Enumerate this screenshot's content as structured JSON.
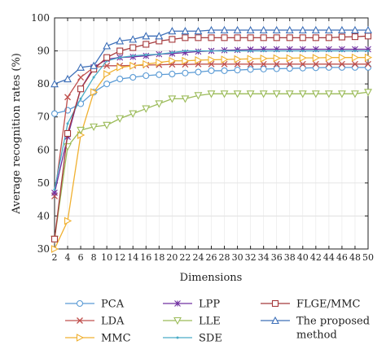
{
  "chart_data": {
    "type": "line",
    "title": "",
    "xlabel": "Dimensions",
    "ylabel": "Average recognition rates (%)",
    "xlim": [
      2,
      50
    ],
    "ylim": [
      30,
      100
    ],
    "xticks": [
      2,
      4,
      6,
      8,
      10,
      12,
      14,
      16,
      18,
      20,
      22,
      24,
      26,
      28,
      30,
      32,
      34,
      36,
      38,
      40,
      42,
      44,
      46,
      48,
      50
    ],
    "yticks": [
      30,
      40,
      50,
      60,
      70,
      80,
      90,
      100
    ],
    "x": [
      2,
      4,
      6,
      8,
      10,
      12,
      14,
      16,
      18,
      20,
      22,
      24,
      26,
      28,
      30,
      32,
      34,
      36,
      38,
      40,
      42,
      44,
      46,
      48,
      50
    ],
    "legend_position": "bottom",
    "series": [
      {
        "name": "PCA",
        "color": "#5b9bd5",
        "marker": "circle",
        "values": [
          71,
          72,
          74,
          77.5,
          80,
          81.5,
          82,
          82.5,
          82.8,
          83,
          83.3,
          83.6,
          84,
          84,
          84.2,
          84.4,
          84.5,
          84.6,
          84.7,
          84.8,
          84.9,
          85,
          85,
          85,
          85
        ]
      },
      {
        "name": "LDA",
        "color": "#c0504d",
        "marker": "x",
        "values": [
          46,
          76,
          82,
          85,
          85.5,
          85.5,
          85.6,
          85.7,
          85.8,
          85.9,
          85.9,
          86,
          86,
          86,
          86,
          86,
          86,
          86,
          86,
          86,
          86,
          86,
          86,
          86,
          86
        ]
      },
      {
        "name": "MMC",
        "color": "#f0b030",
        "marker": "triangle-right",
        "values": [
          29,
          38.5,
          64.5,
          77.5,
          83,
          85,
          85.5,
          86,
          86.5,
          87,
          87,
          87.2,
          87.3,
          87.4,
          87.5,
          87.6,
          87.7,
          87.8,
          87.8,
          87.9,
          87.9,
          88,
          88,
          88,
          88
        ]
      },
      {
        "name": "LPP",
        "color": "#7030a0",
        "marker": "asterisk",
        "values": [
          47,
          64,
          78.5,
          85,
          87.5,
          88,
          88.2,
          88.5,
          89,
          89.2,
          89.5,
          89.8,
          90,
          90.2,
          90.3,
          90.4,
          90.5,
          90.5,
          90.5,
          90.5,
          90.5,
          90.5,
          90.5,
          90.5,
          90.5
        ]
      },
      {
        "name": "LLE",
        "color": "#9bbb59",
        "marker": "triangle-down",
        "values": [
          33,
          61,
          66,
          67,
          67.5,
          69.5,
          71,
          72.5,
          74,
          75.5,
          75.5,
          76.5,
          77,
          77,
          77,
          77,
          77,
          77,
          77,
          77,
          77,
          77,
          77,
          77,
          77.5
        ]
      },
      {
        "name": "SDE",
        "color": "#4bacc6",
        "marker": "dot",
        "values": [
          48,
          68,
          75.5,
          82,
          87,
          88,
          88.5,
          88.8,
          89,
          89.5,
          90,
          90,
          90,
          90,
          90,
          90,
          90,
          90,
          90,
          90,
          90,
          90,
          90,
          90,
          90
        ]
      },
      {
        "name": "FLGE/MMC",
        "color": "#a5393b",
        "marker": "square",
        "values": [
          33,
          65,
          78.5,
          84.5,
          88,
          90,
          91,
          92,
          93,
          93.5,
          94,
          94,
          94,
          94,
          94,
          94,
          94,
          94,
          94,
          94,
          94,
          94,
          94.2,
          94.3,
          94.5
        ]
      },
      {
        "name": "The proposed method",
        "name_lines": [
          "The proposed",
          "method"
        ],
        "color": "#3d6fb8",
        "marker": "triangle-up",
        "values": [
          80,
          81.5,
          85,
          85.5,
          91.5,
          93,
          93.5,
          94.5,
          94.5,
          96,
          96,
          96,
          96.3,
          96.3,
          96.3,
          96.3,
          96.3,
          96.3,
          96.3,
          96.3,
          96.3,
          96.3,
          96.3,
          96.3,
          96.3
        ]
      }
    ]
  }
}
